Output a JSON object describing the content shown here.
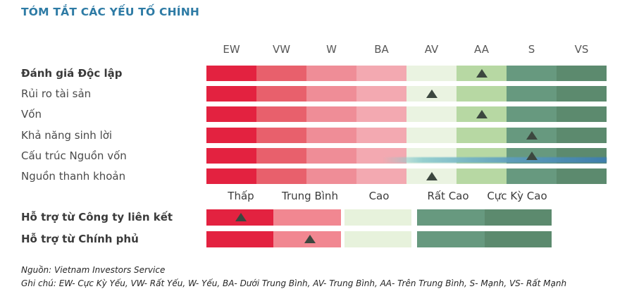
{
  "title": "TÓM TẮT CÁC YẾU TỐ CHÍNH",
  "colors": {
    "title": "#2e7ba5",
    "header": "#575757",
    "label": "#4a4a4a",
    "label_bold": "#3a3a3a",
    "level": "#3b3b3b",
    "marker": "#3c473f",
    "footer": "#262626",
    "top_scale": [
      "#e32240",
      "#e8606c",
      "#ef8d97",
      "#f3a9b1",
      "#eaf3e1",
      "#b7d8a3",
      "#67997f",
      "#5c8a6e"
    ],
    "bottom_scale": [
      "#e32240",
      "#f18791",
      "#e7f2dc",
      "#67997f",
      "#5c8a6e"
    ],
    "artifact_blue": "#3c7db2"
  },
  "grade_headers": [
    "EW",
    "VW",
    "W",
    "BA",
    "AV",
    "AA",
    "S",
    "VS"
  ],
  "level_labels": [
    "Thấp",
    "Trung Bình",
    "Cao",
    "Rất Cao",
    "Cực Kỳ Cao"
  ],
  "factor_rows": [
    {
      "label": "Đánh giá Độc lập",
      "rating": "AA",
      "marker_index": 5
    },
    {
      "label": "Rủi ro tài sản",
      "rating": "AV",
      "marker_index": 4
    },
    {
      "label": "Vốn",
      "rating": "AA",
      "marker_index": 5
    },
    {
      "label": "Khả năng sinh lời",
      "rating": "S",
      "marker_index": 6
    },
    {
      "label": "Cấu trúc Nguồn vốn",
      "rating": "S",
      "marker_index": 6,
      "blue_streak": true
    },
    {
      "label": "Nguồn thanh khoản",
      "rating": "AV",
      "marker_index": 4
    }
  ],
  "support_rows": [
    {
      "label": "Hỗ trợ từ Công ty liên kết",
      "rating": "Thấp",
      "marker_index": 0
    },
    {
      "label": "Hỗ trợ từ Chính phủ",
      "rating": "Trung Bình",
      "marker_index": 1
    }
  ],
  "footer": {
    "source": "Nguồn: Vietnam Investors Service",
    "note": "Ghi chú: EW- Cực Kỳ Yếu, VW- Rất Yếu, W- Yếu, BA- Dưới Trung Bình, AV- Trung Bình, AA- Trên Trung Bình, S- Mạnh, VS- Rất Mạnh"
  },
  "chart_data": {
    "type": "table",
    "title": "TÓM TẮT CÁC YẾU TỐ CHÍNH",
    "scale_top": [
      "EW",
      "VW",
      "W",
      "BA",
      "AV",
      "AA",
      "S",
      "VS"
    ],
    "scale_bottom": [
      "Thấp",
      "Trung Bình",
      "Cao",
      "Rất Cao",
      "Cực Kỳ Cao"
    ],
    "ratings": [
      {
        "factor": "Đánh giá Độc lập",
        "rating": "AA"
      },
      {
        "factor": "Rủi ro tài sản",
        "rating": "AV"
      },
      {
        "factor": "Vốn",
        "rating": "AA"
      },
      {
        "factor": "Khả năng sinh lời",
        "rating": "S"
      },
      {
        "factor": "Cấu trúc Nguồn vốn",
        "rating": "S"
      },
      {
        "factor": "Nguồn thanh khoản",
        "rating": "AV"
      },
      {
        "factor": "Hỗ trợ từ Công ty liên kết",
        "rating": "Thấp"
      },
      {
        "factor": "Hỗ trợ từ Chính phủ",
        "rating": "Trung Bình"
      }
    ]
  }
}
